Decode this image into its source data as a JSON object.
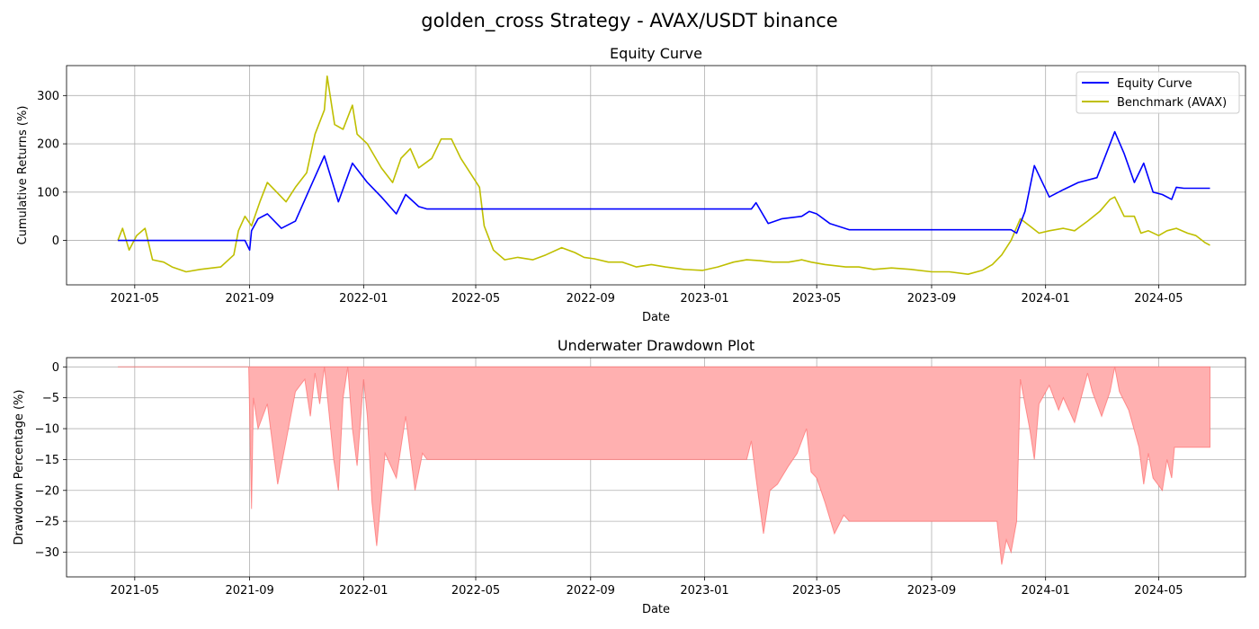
{
  "figure": {
    "suptitle": "golden_cross Strategy - AVAX/USDT binance"
  },
  "colors": {
    "equity": "#0000ff",
    "benchmark": "#bfbf00",
    "drawdown_fill": "#ffb0b0",
    "drawdown_edge": "#ff6b6b",
    "grid": "#b0b0b0"
  },
  "chart_data": [
    {
      "type": "line",
      "title": "Equity Curve",
      "xlabel": "Date",
      "ylabel": "Cumulative Returns (%)",
      "xlim": [
        "2021-02-17",
        "2024-08-02"
      ],
      "ylim": [
        -92,
        362
      ],
      "xticks": [
        "2021-05",
        "2021-09",
        "2022-01",
        "2022-05",
        "2022-09",
        "2023-01",
        "2023-05",
        "2023-09",
        "2024-01",
        "2024-05"
      ],
      "yticks": [
        0,
        100,
        200,
        300
      ],
      "grid": true,
      "legend": "top-right",
      "series": [
        {
          "name": "Equity Curve",
          "x": [
            "2021-04-13",
            "2021-08-27",
            "2021-09-01",
            "2021-09-03",
            "2021-09-10",
            "2021-09-20",
            "2021-10-05",
            "2021-10-20",
            "2021-11-05",
            "2021-11-20",
            "2021-12-05",
            "2021-12-20",
            "2022-01-05",
            "2022-01-20",
            "2022-02-05",
            "2022-02-15",
            "2022-03-01",
            "2022-03-10",
            "2023-02-20",
            "2023-02-25",
            "2023-03-10",
            "2023-03-25",
            "2023-04-15",
            "2023-04-23",
            "2023-05-01",
            "2023-05-15",
            "2023-06-05",
            "2023-11-25",
            "2023-12-01",
            "2023-12-10",
            "2023-12-20",
            "2024-01-05",
            "2024-01-20",
            "2024-02-05",
            "2024-02-25",
            "2024-03-10",
            "2024-03-15",
            "2024-03-25",
            "2024-04-05",
            "2024-04-15",
            "2024-04-25",
            "2024-05-05",
            "2024-05-15",
            "2024-05-20",
            "2024-05-28",
            "2024-06-25"
          ],
          "y": [
            0,
            0,
            -20,
            20,
            45,
            55,
            25,
            40,
            110,
            175,
            80,
            160,
            120,
            90,
            55,
            95,
            70,
            65,
            65,
            78,
            35,
            45,
            50,
            60,
            55,
            35,
            22,
            22,
            15,
            60,
            155,
            90,
            105,
            120,
            130,
            200,
            225,
            180,
            120,
            160,
            100,
            95,
            85,
            110,
            108,
            108
          ]
        },
        {
          "name": "Benchmark (AVAX)",
          "x": [
            "2021-04-13",
            "2021-04-18",
            "2021-04-25",
            "2021-05-03",
            "2021-05-12",
            "2021-05-20",
            "2021-06-01",
            "2021-06-10",
            "2021-06-25",
            "2021-07-10",
            "2021-08-01",
            "2021-08-15",
            "2021-08-20",
            "2021-08-27",
            "2021-09-03",
            "2021-09-12",
            "2021-09-20",
            "2021-09-30",
            "2021-10-10",
            "2021-10-20",
            "2021-11-01",
            "2021-11-10",
            "2021-11-20",
            "2021-11-23",
            "2021-12-01",
            "2021-12-10",
            "2021-12-20",
            "2021-12-25",
            "2022-01-05",
            "2022-01-20",
            "2022-02-01",
            "2022-02-10",
            "2022-02-20",
            "2022-03-01",
            "2022-03-15",
            "2022-03-25",
            "2022-04-05",
            "2022-04-15",
            "2022-04-25",
            "2022-05-05",
            "2022-05-10",
            "2022-05-20",
            "2022-06-01",
            "2022-06-15",
            "2022-07-01",
            "2022-07-15",
            "2022-08-01",
            "2022-08-15",
            "2022-08-25",
            "2022-09-05",
            "2022-09-20",
            "2022-10-05",
            "2022-10-20",
            "2022-11-05",
            "2022-11-20",
            "2022-12-10",
            "2022-12-30",
            "2023-01-15",
            "2023-02-01",
            "2023-02-15",
            "2023-03-01",
            "2023-03-15",
            "2023-04-01",
            "2023-04-15",
            "2023-04-25",
            "2023-05-10",
            "2023-06-01",
            "2023-06-15",
            "2023-07-01",
            "2023-07-20",
            "2023-08-10",
            "2023-09-01",
            "2023-09-20",
            "2023-10-10",
            "2023-10-25",
            "2023-11-05",
            "2023-11-15",
            "2023-11-25",
            "2023-12-05",
            "2023-12-15",
            "2023-12-25",
            "2024-01-05",
            "2024-01-20",
            "2024-02-01",
            "2024-02-15",
            "2024-02-28",
            "2024-03-10",
            "2024-03-15",
            "2024-03-25",
            "2024-04-05",
            "2024-04-12",
            "2024-04-20",
            "2024-05-01",
            "2024-05-10",
            "2024-05-20",
            "2024-06-01",
            "2024-06-10",
            "2024-06-20",
            "2024-06-25"
          ],
          "y": [
            0,
            25,
            -20,
            10,
            25,
            -40,
            -45,
            -55,
            -65,
            -60,
            -55,
            -30,
            20,
            50,
            30,
            80,
            120,
            100,
            80,
            110,
            140,
            220,
            270,
            340,
            240,
            230,
            280,
            220,
            200,
            150,
            120,
            170,
            190,
            150,
            170,
            210,
            210,
            170,
            140,
            110,
            30,
            -20,
            -40,
            -35,
            -40,
            -30,
            -15,
            -25,
            -35,
            -38,
            -45,
            -45,
            -55,
            -50,
            -55,
            -60,
            -62,
            -55,
            -45,
            -40,
            -42,
            -45,
            -45,
            -40,
            -45,
            -50,
            -55,
            -55,
            -60,
            -57,
            -60,
            -65,
            -65,
            -70,
            -62,
            -50,
            -30,
            0,
            45,
            30,
            15,
            20,
            25,
            20,
            40,
            60,
            85,
            90,
            50,
            50,
            15,
            20,
            10,
            20,
            25,
            15,
            10,
            -5,
            -10
          ]
        }
      ]
    },
    {
      "type": "area",
      "title": "Underwater Drawdown Plot",
      "xlabel": "Date",
      "ylabel": "Drawdown Percentage (%)",
      "xlim": [
        "2021-02-17",
        "2024-08-02"
      ],
      "ylim": [
        -34,
        1.5
      ],
      "xticks": [
        "2021-05",
        "2021-09",
        "2022-01",
        "2022-05",
        "2022-09",
        "2023-01",
        "2023-05",
        "2023-09",
        "2024-01",
        "2024-05"
      ],
      "yticks": [
        0,
        -5,
        -10,
        -15,
        -20,
        -25,
        -30
      ],
      "grid": true,
      "series": [
        {
          "name": "Drawdown",
          "x": [
            "2021-04-13",
            "2021-08-31",
            "2021-09-03",
            "2021-09-05",
            "2021-09-10",
            "2021-09-20",
            "2021-10-01",
            "2021-10-10",
            "2021-10-20",
            "2021-10-30",
            "2021-11-05",
            "2021-11-10",
            "2021-11-15",
            "2021-11-20",
            "2021-11-30",
            "2021-12-05",
            "2021-12-10",
            "2021-12-15",
            "2021-12-20",
            "2021-12-25",
            "2022-01-01",
            "2022-01-05",
            "2022-01-10",
            "2022-01-15",
            "2022-01-24",
            "2022-02-05",
            "2022-02-15",
            "2022-02-25",
            "2022-03-05",
            "2022-03-10",
            "2023-02-15",
            "2023-02-20",
            "2023-02-25",
            "2023-03-05",
            "2023-03-12",
            "2023-03-20",
            "2023-04-01",
            "2023-04-10",
            "2023-04-20",
            "2023-04-25",
            "2023-05-01",
            "2023-05-10",
            "2023-05-20",
            "2023-05-30",
            "2023-06-05",
            "2023-11-10",
            "2023-11-15",
            "2023-11-20",
            "2023-11-25",
            "2023-12-01",
            "2023-12-05",
            "2023-12-15",
            "2023-12-20",
            "2023-12-25",
            "2024-01-05",
            "2024-01-15",
            "2024-01-20",
            "2024-02-01",
            "2024-02-15",
            "2024-02-20",
            "2024-03-01",
            "2024-03-10",
            "2024-03-15",
            "2024-03-20",
            "2024-03-30",
            "2024-04-10",
            "2024-04-15",
            "2024-04-20",
            "2024-04-25",
            "2024-05-05",
            "2024-05-10",
            "2024-05-15",
            "2024-05-18",
            "2024-05-20",
            "2024-06-25"
          ],
          "y": [
            0,
            0,
            -23,
            -5,
            -10,
            -6,
            -19,
            -12,
            -4,
            -2,
            -8,
            -1,
            -6,
            0,
            -15,
            -20,
            -5,
            0,
            -10,
            -16,
            -2,
            -8,
            -22,
            -29,
            -14,
            -18,
            -8,
            -20,
            -14,
            -15,
            -15,
            -12,
            -18,
            -27,
            -20,
            -19,
            -16,
            -14,
            -10,
            -17,
            -18,
            -22,
            -27,
            -24,
            -25,
            -25,
            -32,
            -28,
            -30,
            -25,
            -2,
            -10,
            -15,
            -6,
            -3,
            -7,
            -5,
            -9,
            -1,
            -4,
            -8,
            -4,
            0,
            -4,
            -7,
            -13,
            -19,
            -14,
            -18,
            -20,
            -15,
            -18,
            -13,
            -13,
            -13
          ]
        }
      ]
    }
  ]
}
